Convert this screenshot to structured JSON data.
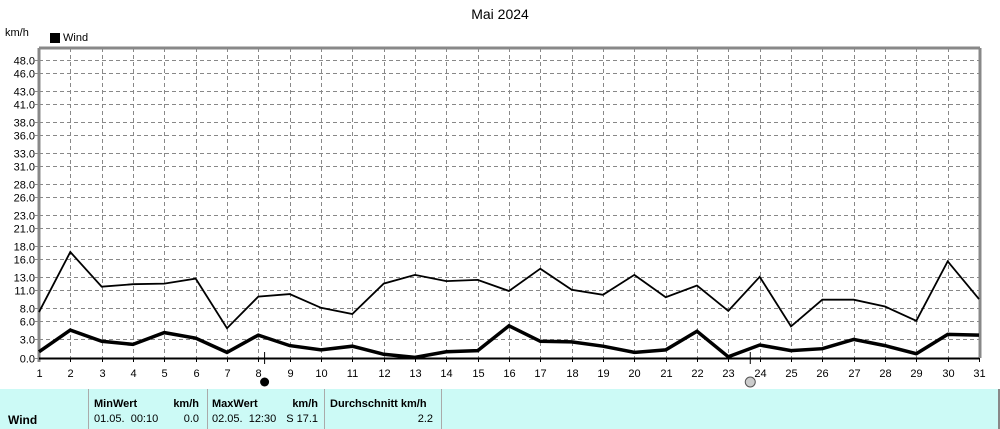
{
  "header": {
    "title": "Mai 2024",
    "unit": "km/h"
  },
  "legend": [
    {
      "label": "Wind",
      "color": "#000000"
    }
  ],
  "chart_data": {
    "type": "line",
    "title": "Mai 2024",
    "xlabel": "",
    "ylabel": "km/h",
    "ylim": [
      0,
      48
    ],
    "grid": true,
    "legend_position": "top-left",
    "x": [
      1,
      2,
      3,
      4,
      5,
      6,
      7,
      8,
      9,
      10,
      11,
      12,
      13,
      14,
      15,
      16,
      17,
      18,
      19,
      20,
      21,
      22,
      23,
      24,
      25,
      26,
      27,
      28,
      29,
      30,
      31
    ],
    "y_ticks": [
      0.0,
      3.0,
      6.0,
      8.0,
      11.0,
      13.0,
      16.0,
      18.0,
      21.0,
      23.0,
      26.0,
      28.0,
      31.0,
      33.0,
      36.0,
      38.0,
      41.0,
      43.0,
      46.0,
      48.0
    ],
    "series": [
      {
        "name": "Wind (max)",
        "style": "thin",
        "values": [
          7.4,
          17.1,
          11.5,
          11.9,
          12.0,
          12.8,
          4.8,
          9.9,
          10.3,
          8.1,
          7.1,
          12.0,
          13.4,
          12.4,
          12.6,
          10.8,
          14.4,
          11.0,
          10.2,
          13.4,
          9.8,
          11.7,
          7.6,
          13.1,
          5.1,
          9.4,
          9.4,
          8.3,
          6.0,
          15.6,
          9.5
        ]
      },
      {
        "name": "Wind (avg)",
        "style": "thick",
        "values": [
          1.0,
          4.5,
          2.7,
          2.2,
          4.1,
          3.2,
          0.9,
          3.7,
          2.0,
          1.3,
          1.9,
          0.6,
          0.1,
          1.0,
          1.2,
          5.2,
          2.7,
          2.6,
          1.9,
          0.9,
          1.3,
          4.3,
          0.2,
          2.1,
          1.2,
          1.5,
          3.0,
          2.0,
          0.7,
          3.8,
          3.7
        ]
      }
    ],
    "annotations": [
      {
        "type": "new-moon",
        "day": 8.2
      },
      {
        "type": "full-moon",
        "day": 23.7
      }
    ]
  },
  "stats": {
    "row_label": "Wind",
    "min": {
      "label": "MinWert",
      "unit": "km/h",
      "time": "01.05.  00:10",
      "value": "0.0"
    },
    "max": {
      "label": "MaxWert",
      "unit": "km/h",
      "time": "02.05.  12:30",
      "value": "S 17.1"
    },
    "avg": {
      "label": "Durchschnitt km/h",
      "value": "2.2"
    }
  }
}
